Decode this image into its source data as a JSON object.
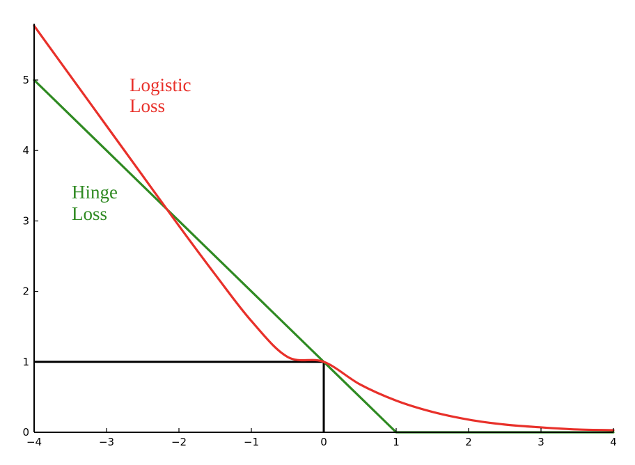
{
  "colors": {
    "logistic": "#e8302a",
    "hinge": "#2f8a22",
    "axes": "#000000",
    "marker": "#000000",
    "background": "#ffffff"
  },
  "chart_data": {
    "type": "line",
    "title": "",
    "xlabel": "",
    "ylabel": "",
    "xlim": [
      -4,
      4
    ],
    "ylim": [
      0,
      5.8
    ],
    "grid": false,
    "x_ticks": [
      -4,
      -3,
      -2,
      -1,
      0,
      1,
      2,
      3,
      4
    ],
    "x_tick_labels": [
      "−4",
      "−3",
      "−2",
      "−1",
      "0",
      "1",
      "2",
      "3",
      "4"
    ],
    "y_ticks": [
      0,
      1,
      2,
      3,
      4,
      5
    ],
    "y_tick_labels": [
      "0",
      "1",
      "2",
      "3",
      "4",
      "5"
    ],
    "series": [
      {
        "name": "Logistic Loss",
        "label_lines": [
          "Logistic",
          "Loss"
        ],
        "color": "#e8302a",
        "x": [
          -4,
          -3.5,
          -3,
          -2.5,
          -2,
          -1.5,
          -1,
          -0.5,
          0,
          0.5,
          1,
          1.5,
          2,
          2.5,
          3,
          3.5,
          4
        ],
        "y": [
          5.77,
          5.06,
          4.35,
          3.64,
          2.93,
          2.24,
          1.58,
          1.07,
          1.0,
          0.68,
          0.45,
          0.29,
          0.18,
          0.11,
          0.07,
          0.04,
          0.03
        ]
      },
      {
        "name": "Hinge Loss",
        "label_lines": [
          "Hinge",
          "Loss"
        ],
        "color": "#2f8a22",
        "x": [
          -4,
          1,
          4
        ],
        "y": [
          5,
          0,
          0
        ]
      }
    ],
    "annotations": [
      {
        "type": "reference-lines",
        "x": 0,
        "y": 1,
        "color": "#000000"
      }
    ]
  }
}
